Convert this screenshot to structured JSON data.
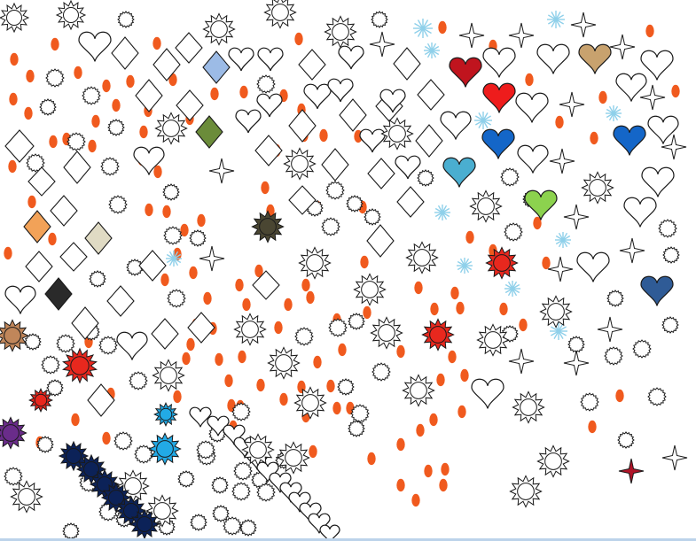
{
  "canvas": {
    "background": "#ffffff",
    "bottom_border_color": "#bcd3ea"
  },
  "palette": {
    "outline": "#1a1a1a",
    "oval_orange": "#f05a1e",
    "snowflake_blue": "#8fd0ea",
    "heart_red": "#c0141e",
    "heart_bright_red": "#ee1c1c",
    "heart_blue": "#1466c8",
    "heart_teal": "#4aaed0",
    "heart_green": "#8cd24e",
    "heart_steel_blue": "#2f5b96",
    "heart_burlap": "#c8a26e",
    "diamond_light_blue": "#9cbbe6",
    "diamond_green": "#6b8c3a",
    "diamond_orange": "#f2a258",
    "diamond_beige": "#e0dbc4",
    "diamond_dark": "#2a2a2a",
    "sun_dark_olive": "#4a4632",
    "sun_red": "#e8281e",
    "sun_brown": "#c0865a",
    "sun_purple": "#6a2c8a",
    "sun_sky_blue": "#22aae6",
    "sun_navy": "#0c2258",
    "star_dark_red": "#b01428"
  },
  "shape_types": [
    "heart-icon",
    "diamond-icon",
    "sun-icon",
    "gear-icon",
    "four-point-star-icon",
    "oval-icon",
    "snowflake-icon"
  ]
}
